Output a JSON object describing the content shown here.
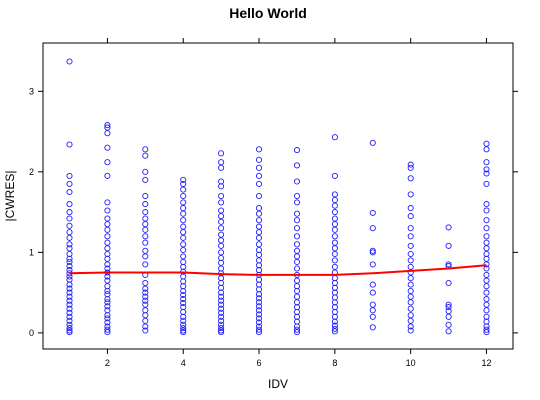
{
  "chart_data": {
    "type": "scatter",
    "title": "Hello World",
    "xlabel": "IDV",
    "ylabel": "|CWRES|",
    "xlim": [
      0.3,
      12.7
    ],
    "ylim": [
      -0.2,
      3.6
    ],
    "xticks": [
      2,
      4,
      6,
      8,
      10,
      12
    ],
    "yticks": [
      0,
      1,
      2,
      3
    ],
    "grid": false,
    "colors": {
      "points": "#1f1fff",
      "smooth": "#ff0000"
    },
    "points": [
      {
        "x": 1,
        "y": [
          3.37,
          2.34,
          1.95,
          1.85,
          1.75,
          1.6,
          1.5,
          1.42,
          1.33,
          1.25,
          1.18,
          1.1,
          1.05,
          0.98,
          0.92,
          0.88,
          0.83,
          0.78,
          0.74,
          0.7,
          0.66,
          0.6,
          0.55,
          0.5,
          0.45,
          0.4,
          0.35,
          0.3,
          0.25,
          0.2,
          0.15,
          0.1,
          0.06,
          0.03,
          0.01
        ]
      },
      {
        "x": 2,
        "y": [
          2.58,
          2.55,
          2.48,
          2.3,
          2.12,
          1.95,
          1.62,
          1.52,
          1.42,
          1.35,
          1.28,
          1.2,
          1.12,
          1.05,
          0.98,
          0.92,
          0.85,
          0.8,
          0.75,
          0.7,
          0.65,
          0.58,
          0.52,
          0.48,
          0.42,
          0.38,
          0.33,
          0.28,
          0.22,
          0.18,
          0.13,
          0.08,
          0.04,
          0.01
        ]
      },
      {
        "x": 3,
        "y": [
          2.28,
          2.2,
          2.0,
          1.9,
          1.7,
          1.6,
          1.5,
          1.42,
          1.35,
          1.28,
          1.2,
          1.12,
          1.02,
          0.95,
          0.85,
          0.72,
          0.62,
          0.55,
          0.5,
          0.45,
          0.4,
          0.35,
          0.28,
          0.22,
          0.15,
          0.08,
          0.03
        ]
      },
      {
        "x": 4,
        "y": [
          1.9,
          1.85,
          1.78,
          1.7,
          1.62,
          1.55,
          1.48,
          1.4,
          1.32,
          1.25,
          1.18,
          1.1,
          1.03,
          0.95,
          0.88,
          0.82,
          0.76,
          0.7,
          0.64,
          0.58,
          0.52,
          0.47,
          0.42,
          0.37,
          0.32,
          0.26,
          0.2,
          0.15,
          0.1,
          0.06,
          0.03,
          0.01
        ]
      },
      {
        "x": 5,
        "y": [
          2.23,
          2.12,
          2.05,
          1.88,
          1.82,
          1.7,
          1.62,
          1.52,
          1.45,
          1.38,
          1.3,
          1.22,
          1.15,
          1.08,
          1.0,
          0.93,
          0.87,
          0.8,
          0.74,
          0.68,
          0.62,
          0.56,
          0.5,
          0.45,
          0.4,
          0.35,
          0.3,
          0.25,
          0.2,
          0.15,
          0.1,
          0.06,
          0.03,
          0.01
        ]
      },
      {
        "x": 6,
        "y": [
          2.28,
          2.15,
          2.05,
          1.95,
          1.85,
          1.7,
          1.55,
          1.48,
          1.4,
          1.32,
          1.25,
          1.18,
          1.1,
          1.03,
          0.97,
          0.9,
          0.84,
          0.78,
          0.72,
          0.66,
          0.6,
          0.54,
          0.48,
          0.43,
          0.38,
          0.33,
          0.28,
          0.23,
          0.18,
          0.13,
          0.08,
          0.04,
          0.01
        ]
      },
      {
        "x": 7,
        "y": [
          2.27,
          2.08,
          1.88,
          1.7,
          1.62,
          1.48,
          1.4,
          1.3,
          1.2,
          1.1,
          1.02,
          0.95,
          0.88,
          0.8,
          0.72,
          0.65,
          0.58,
          0.52,
          0.45,
          0.38,
          0.32,
          0.26,
          0.2,
          0.14,
          0.08,
          0.04,
          0.01
        ]
      },
      {
        "x": 8,
        "y": [
          2.43,
          1.95,
          1.72,
          1.65,
          1.58,
          1.5,
          1.42,
          1.35,
          1.28,
          1.2,
          1.12,
          1.05,
          0.98,
          0.9,
          0.82,
          0.75,
          0.68,
          0.62,
          0.56,
          0.5,
          0.44,
          0.38,
          0.32,
          0.26,
          0.2,
          0.14,
          0.09,
          0.05,
          0.02
        ]
      },
      {
        "x": 9,
        "y": [
          2.36,
          1.49,
          1.3,
          1.02,
          1.0,
          0.85,
          0.6,
          0.5,
          0.35,
          0.28,
          0.2,
          0.07
        ]
      },
      {
        "x": 10,
        "y": [
          2.09,
          2.05,
          1.92,
          1.72,
          1.55,
          1.45,
          1.3,
          1.2,
          1.08,
          0.98,
          0.9,
          0.82,
          0.75,
          0.68,
          0.6,
          0.52,
          0.45,
          0.38,
          0.3,
          0.22,
          0.15,
          0.08,
          0.03
        ]
      },
      {
        "x": 11,
        "y": [
          1.31,
          1.08,
          0.85,
          0.83,
          0.62,
          0.35,
          0.32,
          0.27,
          0.2,
          0.1,
          0.02
        ]
      },
      {
        "x": 12,
        "y": [
          2.35,
          2.28,
          2.12,
          2.03,
          1.98,
          1.85,
          1.6,
          1.52,
          1.4,
          1.3,
          1.2,
          1.12,
          1.05,
          0.98,
          0.92,
          0.85,
          0.8,
          0.72,
          0.65,
          0.58,
          0.5,
          0.42,
          0.35,
          0.28,
          0.2,
          0.14,
          0.08,
          0.04,
          0.01
        ]
      }
    ],
    "smooth_line": {
      "x": [
        1,
        2,
        3,
        4,
        5,
        6,
        7,
        8,
        9,
        10,
        11,
        12
      ],
      "y": [
        0.74,
        0.75,
        0.75,
        0.75,
        0.73,
        0.72,
        0.72,
        0.72,
        0.74,
        0.77,
        0.8,
        0.84
      ]
    }
  }
}
